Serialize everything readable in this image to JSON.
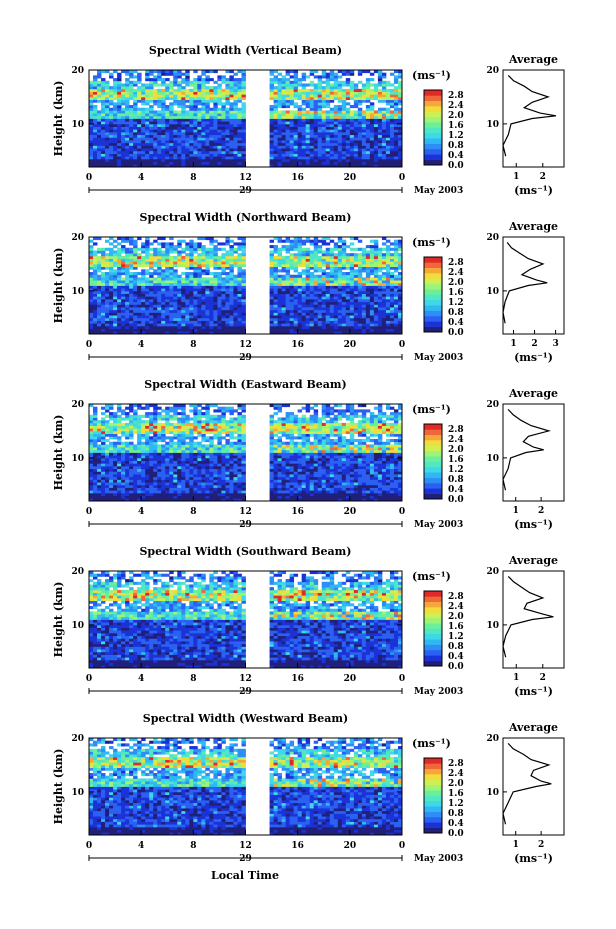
{
  "colors": {
    "scale": [
      "#20207a",
      "#1b33d6",
      "#2a61f2",
      "#2d8ff5",
      "#2fb8f2",
      "#3fd8e8",
      "#4fe7c4",
      "#6bef98",
      "#9df477",
      "#cfef55",
      "#f2dc3a",
      "#f5a83a",
      "#f0683a",
      "#e02a28"
    ],
    "gap": "#ffffff"
  },
  "figure": {
    "x_tick_labels": [
      "0",
      "4",
      "8",
      "12",
      "16",
      "20",
      "0"
    ],
    "day_label": "29",
    "month_label": "May 2003",
    "y_label": "Height (km)",
    "y_tick_labels": [
      "20",
      "10"
    ],
    "colorbar_unit": "(ms⁻¹)",
    "colorbar_ticks": [
      "2.8",
      "2.4",
      "2.0",
      "1.6",
      "1.2",
      "0.8",
      "0.4",
      "0.0"
    ],
    "avg_title": "Average",
    "avg_unit": "(ms⁻¹)",
    "x_axis_title": "Local Time"
  },
  "chart_data": [
    {
      "type": "heatmap",
      "title": "Spectral Width (Vertical Beam)",
      "xlabel": "Local Time",
      "ylabel": "Height (km)",
      "xlim": [
        0,
        24
      ],
      "ylim": [
        2,
        20
      ],
      "zlim": [
        0,
        3.0
      ],
      "data_gap_hours": [
        12,
        14
      ],
      "strong_width_layer_km": [
        14.5,
        16.5
      ],
      "secondary_layer_km": [
        11,
        12.5
      ],
      "average_profile": {
        "xlim": [
          0.5,
          2.8
        ],
        "x_tick_labels": [
          "1",
          "2"
        ],
        "heights_km": [
          4,
          6,
          8,
          10,
          11,
          11.5,
          12,
          13,
          14,
          15,
          16,
          17,
          18,
          19
        ],
        "values": [
          0.6,
          0.5,
          0.7,
          0.8,
          1.6,
          2.5,
          1.9,
          1.3,
          1.6,
          2.2,
          1.6,
          1.3,
          0.9,
          0.7
        ]
      }
    },
    {
      "type": "heatmap",
      "title": "Spectral Width (Northward Beam)",
      "xlabel": "Local Time",
      "ylabel": "Height (km)",
      "xlim": [
        0,
        24
      ],
      "ylim": [
        2,
        20
      ],
      "zlim": [
        0,
        3.0
      ],
      "data_gap_hours": [
        12,
        14
      ],
      "strong_width_layer_km": [
        14.5,
        16.5
      ],
      "secondary_layer_km": [
        11,
        12.5
      ],
      "average_profile": {
        "xlim": [
          0.5,
          3.4
        ],
        "x_tick_labels": [
          "1",
          "2",
          "3"
        ],
        "heights_km": [
          4,
          6,
          8,
          10,
          11,
          11.5,
          12,
          13,
          14,
          15,
          16,
          17,
          18,
          19
        ],
        "values": [
          0.6,
          0.5,
          0.6,
          0.8,
          1.7,
          2.6,
          2.1,
          1.4,
          1.8,
          2.4,
          1.7,
          1.3,
          0.9,
          0.7
        ]
      }
    },
    {
      "type": "heatmap",
      "title": "Spectral Width (Eastward Beam)",
      "xlabel": "Local Time",
      "ylabel": "Height (km)",
      "xlim": [
        0,
        24
      ],
      "ylim": [
        2,
        20
      ],
      "zlim": [
        0,
        3.0
      ],
      "data_gap_hours": [
        12,
        14
      ],
      "strong_width_layer_km": [
        14.5,
        16.5
      ],
      "secondary_layer_km": [
        11,
        12.5
      ],
      "average_profile": {
        "xlim": [
          0.5,
          2.9
        ],
        "x_tick_labels": [
          "1",
          "2"
        ],
        "heights_km": [
          4,
          6,
          8,
          10,
          11,
          11.5,
          12,
          13,
          14,
          15,
          16,
          17,
          18,
          19
        ],
        "values": [
          0.6,
          0.5,
          0.7,
          0.8,
          1.4,
          2.1,
          1.7,
          1.3,
          1.5,
          2.3,
          1.6,
          1.2,
          0.9,
          0.7
        ]
      }
    },
    {
      "type": "heatmap",
      "title": "Spectral Width (Southward Beam)",
      "xlabel": "Local Time",
      "ylabel": "Height (km)",
      "xlim": [
        0,
        24
      ],
      "ylim": [
        2,
        20
      ],
      "zlim": [
        0,
        3.0
      ],
      "data_gap_hours": [
        12,
        14
      ],
      "strong_width_layer_km": [
        14.5,
        16.5
      ],
      "secondary_layer_km": [
        11,
        12.5
      ],
      "average_profile": {
        "xlim": [
          0.5,
          2.8
        ],
        "x_tick_labels": [
          "1",
          "2"
        ],
        "heights_km": [
          4,
          6,
          8,
          10,
          11,
          11.5,
          12,
          13,
          14,
          15,
          16,
          17,
          18,
          19
        ],
        "values": [
          0.6,
          0.5,
          0.6,
          0.8,
          1.6,
          2.4,
          2.0,
          1.3,
          1.4,
          2.0,
          1.5,
          1.2,
          0.9,
          0.7
        ]
      }
    },
    {
      "type": "heatmap",
      "title": "Spectral Width (Westward Beam)",
      "xlabel": "Local Time",
      "ylabel": "Height (km)",
      "xlim": [
        0,
        24
      ],
      "ylim": [
        2,
        20
      ],
      "zlim": [
        0,
        3.0
      ],
      "data_gap_hours": [
        12,
        14
      ],
      "strong_width_layer_km": [
        14.5,
        16.5
      ],
      "secondary_layer_km": [
        11,
        12.5
      ],
      "average_profile": {
        "xlim": [
          0.5,
          2.9
        ],
        "x_tick_labels": [
          "1",
          "2"
        ],
        "heights_km": [
          4,
          6,
          8,
          10,
          11,
          11.5,
          12,
          13,
          14,
          15,
          16,
          17,
          18,
          19
        ],
        "values": [
          0.6,
          0.5,
          0.7,
          0.9,
          1.8,
          2.4,
          2.0,
          1.6,
          1.7,
          2.3,
          1.6,
          1.3,
          0.9,
          0.7
        ]
      }
    }
  ]
}
